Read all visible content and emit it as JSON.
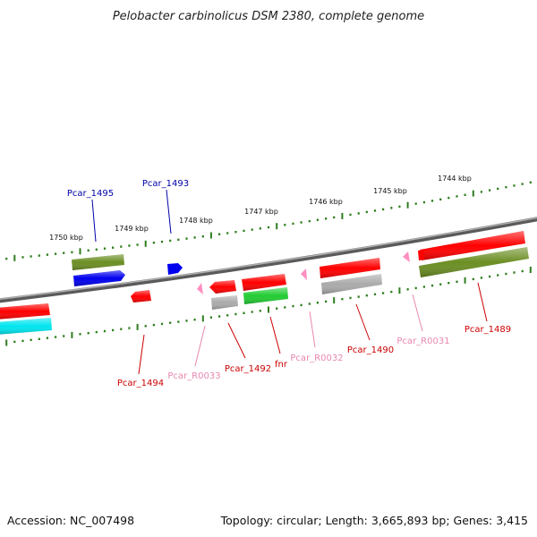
{
  "title": "Pelobacter carbinolicus DSM 2380, complete genome",
  "footer": {
    "accession": "Accession: NC_007498",
    "summary": "Topology: circular; Length: 3,665,893 bp; Genes: 3,415"
  },
  "colors": {
    "tick": "#2e7d1e",
    "axis": "#808080",
    "red": "#ff0000",
    "olive": "#6b8e23",
    "blue": "#0000ee",
    "cyan": "#00e5ee",
    "green": "#22cc33",
    "gray": "#aaaaaa",
    "pink": "#ff8fc0",
    "label_red": "#cc0000",
    "label_blue": "#0000aa",
    "label_pink": "#e887b0"
  },
  "scale": {
    "unit": "kbp",
    "ticks": [
      {
        "label": "1744 kbp"
      },
      {
        "label": "1745 kbp"
      },
      {
        "label": "1746 kbp"
      },
      {
        "label": "1747 kbp"
      },
      {
        "label": "1748 kbp"
      },
      {
        "label": "1749 kbp"
      },
      {
        "label": "1750 kbp"
      }
    ]
  },
  "genes": {
    "above": [
      {
        "name": "Pcar_1495",
        "type": "CDS"
      },
      {
        "name": "Pcar_1493",
        "type": "CDS"
      }
    ],
    "below": [
      {
        "name": "Pcar_1494",
        "type": "CDS"
      },
      {
        "name": "Pcar_R0033",
        "type": "tRNA"
      },
      {
        "name": "Pcar_1492",
        "type": "CDS"
      },
      {
        "name": "fnr",
        "type": "CDS"
      },
      {
        "name": "Pcar_R0032",
        "type": "tRNA"
      },
      {
        "name": "Pcar_1490",
        "type": "CDS"
      },
      {
        "name": "Pcar_R0031",
        "type": "tRNA"
      },
      {
        "name": "Pcar_1489",
        "type": "CDS"
      }
    ]
  }
}
